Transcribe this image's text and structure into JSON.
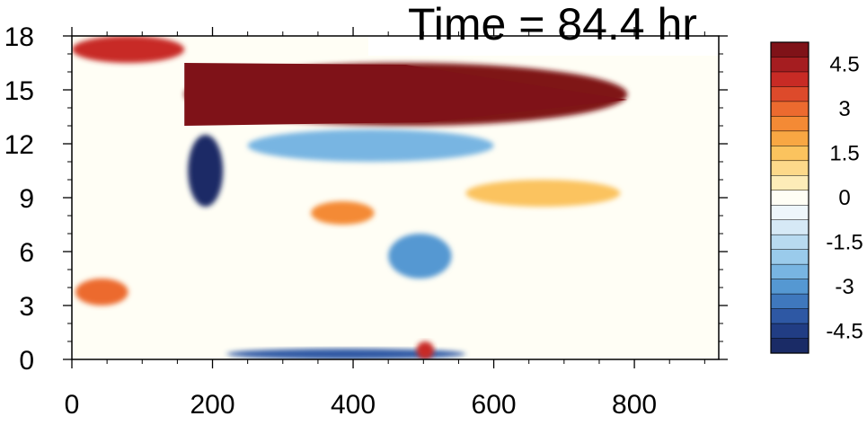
{
  "chart_data": {
    "type": "heatmap",
    "title": "Time = 84.4 hr",
    "xlabel": "",
    "ylabel": "",
    "xlim": [
      0,
      920
    ],
    "ylim": [
      0,
      18
    ],
    "x_ticks": [
      "0",
      "200",
      "400",
      "600",
      "800"
    ],
    "y_ticks": [
      "0",
      "3",
      "6",
      "9",
      "12",
      "15",
      "18"
    ],
    "grid": false,
    "colorbar": {
      "placement": "right",
      "labels": [
        "4.5",
        "3",
        "1.5",
        "0",
        "-1.5",
        "-3",
        "-4.5"
      ],
      "levels": [
        5,
        4.5,
        4,
        3.5,
        3,
        2.5,
        2,
        1.5,
        1,
        0.5,
        0,
        -0.5,
        -1,
        -1.5,
        -2,
        -2.5,
        -3,
        -3.5,
        -4,
        -4.5,
        -5
      ],
      "colors": [
        "#7f1218",
        "#a51d20",
        "#c82b25",
        "#dd4a2b",
        "#ec6a2f",
        "#f48a35",
        "#f8a743",
        "#fbc35e",
        "#fdd98a",
        "#fdecb8",
        "#fffef5",
        "#eef6fb",
        "#d6e9f6",
        "#b8daf0",
        "#9acbeb",
        "#78b5e2",
        "#5598d2",
        "#3f78bd",
        "#2e58a4",
        "#213d84",
        "#1a2b66"
      ]
    },
    "features": [
      {
        "name": "upper-red-band",
        "x": [
          160,
          790
        ],
        "y": [
          13.0,
          16.5
        ],
        "value": 5
      },
      {
        "name": "left-red-top",
        "x": [
          0,
          160
        ],
        "y": [
          16.5,
          18
        ],
        "value": 4
      },
      {
        "name": "blue-column",
        "x": [
          165,
          215
        ],
        "y": [
          8.5,
          12.5
        ],
        "value": -5
      },
      {
        "name": "blue-band-below-red",
        "x": [
          250,
          600
        ],
        "y": [
          11.0,
          12.8
        ],
        "value": -2.5
      },
      {
        "name": "bottom-blue-strip",
        "x": [
          220,
          560
        ],
        "y": [
          0.0,
          0.6
        ],
        "value": -4
      },
      {
        "name": "mid-blue-patch",
        "x": [
          450,
          540
        ],
        "y": [
          4.5,
          7.0
        ],
        "value": -3
      },
      {
        "name": "orange-patch-mid",
        "x": [
          340,
          430
        ],
        "y": [
          7.5,
          8.8
        ],
        "value": 2.5
      },
      {
        "name": "orange-patch-right",
        "x": [
          560,
          780
        ],
        "y": [
          8.5,
          10.0
        ],
        "value": 1.5
      },
      {
        "name": "orange-bottom",
        "x": [
          490,
          515
        ],
        "y": [
          0.0,
          1.0
        ],
        "value": 4
      },
      {
        "name": "left-orange-low",
        "x": [
          5,
          80
        ],
        "y": [
          3.0,
          4.5
        ],
        "value": 3
      }
    ]
  }
}
